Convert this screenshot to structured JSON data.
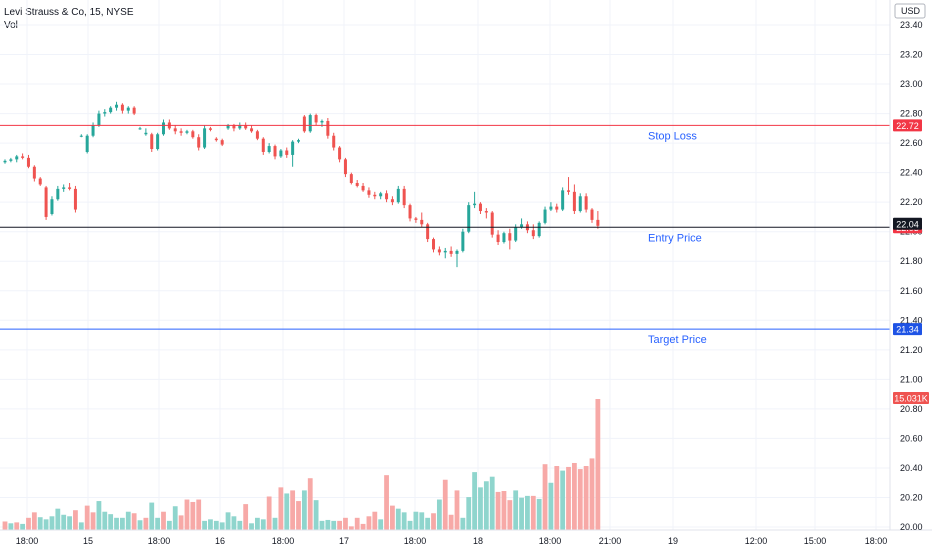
{
  "legend": {
    "symbol_line": "Levi Strauss & Co, 15, NYSE",
    "volume_label": "Vol"
  },
  "colors": {
    "up": "#26a69a",
    "down": "#ef5350",
    "up_volume": "#8fd5cd",
    "down_volume": "#f7a9a7",
    "stop_loss": "#f23645",
    "entry": "#131722",
    "target": "#2962ff",
    "note_text": "#2962ff",
    "grid": "#f0f3fa",
    "axis_text": "#131722"
  },
  "chart_data": {
    "type": "candlestick",
    "currency": "USD",
    "y_axis": {
      "min": 20.0,
      "max": 23.4,
      "ticks": [
        "23.40",
        "23.20",
        "23.00",
        "22.80",
        "22.60",
        "22.40",
        "22.20",
        "22.00",
        "21.80",
        "21.60",
        "21.40",
        "21.20",
        "21.00",
        "20.80",
        "20.60",
        "20.40",
        "20.20",
        "20.00"
      ]
    },
    "x_axis": {
      "ticks": [
        "18:00",
        "15",
        "18:00",
        "16",
        "18:00",
        "17",
        "18:00",
        "18",
        "18:00",
        "21:00",
        "19",
        "12:00",
        "15:00",
        "18:00"
      ]
    },
    "grid": true,
    "price_lines": [
      {
        "name": "stop_loss",
        "price": 22.72,
        "label": "22.72",
        "note": "Stop Loss"
      },
      {
        "name": "entry",
        "price": 22.03,
        "label": "22.03",
        "note": "Entry Price"
      },
      {
        "name": "target",
        "price": 21.34,
        "label": "21.34",
        "note": "Target Price"
      }
    ],
    "last_price": {
      "price": 22.04,
      "label": "22.04"
    },
    "last_volume": {
      "label": "15.031K"
    },
    "candles": [
      [
        22.47,
        22.49,
        22.46,
        22.48
      ],
      [
        22.48,
        22.5,
        22.47,
        22.49
      ],
      [
        22.49,
        22.52,
        22.47,
        22.51
      ],
      [
        22.51,
        22.53,
        22.49,
        22.5
      ],
      [
        22.5,
        22.52,
        22.43,
        22.44
      ],
      [
        22.44,
        22.45,
        22.34,
        22.36
      ],
      [
        22.36,
        22.37,
        22.31,
        22.32
      ],
      [
        22.3,
        22.31,
        22.08,
        22.1
      ],
      [
        22.12,
        22.24,
        22.11,
        22.22
      ],
      [
        22.22,
        22.31,
        22.21,
        22.29
      ],
      [
        22.29,
        22.32,
        22.27,
        22.3
      ],
      [
        22.3,
        22.33,
        22.28,
        22.29
      ],
      [
        22.29,
        22.31,
        22.13,
        22.15
      ],
      [
        22.65,
        22.66,
        22.64,
        22.65
      ],
      [
        22.54,
        22.66,
        22.53,
        22.65
      ],
      [
        22.65,
        22.74,
        22.64,
        22.72
      ],
      [
        22.72,
        22.82,
        22.71,
        22.8
      ],
      [
        22.8,
        22.83,
        22.78,
        22.81
      ],
      [
        22.81,
        22.85,
        22.8,
        22.84
      ],
      [
        22.84,
        22.88,
        22.82,
        22.86
      ],
      [
        22.86,
        22.87,
        22.8,
        22.82
      ],
      [
        22.82,
        22.85,
        22.8,
        22.84
      ],
      [
        22.84,
        22.85,
        22.79,
        22.8
      ],
      [
        22.7,
        22.71,
        22.69,
        22.7
      ],
      [
        22.66,
        22.7,
        22.65,
        22.67
      ],
      [
        22.66,
        22.67,
        22.54,
        22.56
      ],
      [
        22.56,
        22.67,
        22.55,
        22.66
      ],
      [
        22.66,
        22.76,
        22.65,
        22.74
      ],
      [
        22.74,
        22.76,
        22.69,
        22.7
      ],
      [
        22.7,
        22.72,
        22.66,
        22.68
      ],
      [
        22.68,
        22.7,
        22.65,
        22.67
      ],
      [
        22.67,
        22.69,
        22.66,
        22.68
      ],
      [
        22.68,
        22.69,
        22.63,
        22.64
      ],
      [
        22.64,
        22.66,
        22.55,
        22.57
      ],
      [
        22.57,
        22.72,
        22.56,
        22.7
      ],
      [
        22.7,
        22.71,
        22.68,
        22.69
      ],
      [
        22.63,
        22.64,
        22.61,
        22.62
      ],
      [
        22.62,
        22.63,
        22.58,
        22.59
      ],
      [
        22.7,
        22.73,
        22.69,
        22.72
      ],
      [
        22.72,
        22.73,
        22.68,
        22.7
      ],
      [
        22.7,
        22.74,
        22.69,
        22.72
      ],
      [
        22.72,
        22.74,
        22.69,
        22.7
      ],
      [
        22.7,
        22.72,
        22.67,
        22.68
      ],
      [
        22.68,
        22.69,
        22.62,
        22.63
      ],
      [
        22.63,
        22.64,
        22.52,
        22.54
      ],
      [
        22.54,
        22.6,
        22.53,
        22.58
      ],
      [
        22.58,
        22.59,
        22.49,
        22.51
      ],
      [
        22.51,
        22.56,
        22.5,
        22.55
      ],
      [
        22.55,
        22.57,
        22.5,
        22.52
      ],
      [
        22.52,
        22.62,
        22.44,
        22.61
      ],
      [
        22.61,
        22.63,
        22.6,
        22.62
      ],
      [
        22.78,
        22.79,
        22.67,
        22.68
      ],
      [
        22.68,
        22.8,
        22.67,
        22.79
      ],
      [
        22.79,
        22.8,
        22.72,
        22.74
      ],
      [
        22.74,
        22.76,
        22.71,
        22.75
      ],
      [
        22.75,
        22.77,
        22.63,
        22.65
      ],
      [
        22.65,
        22.67,
        22.55,
        22.57
      ],
      [
        22.57,
        22.58,
        22.47,
        22.49
      ],
      [
        22.49,
        22.5,
        22.37,
        22.39
      ],
      [
        22.39,
        22.4,
        22.32,
        22.33
      ],
      [
        22.33,
        22.35,
        22.3,
        22.31
      ],
      [
        22.31,
        22.33,
        22.27,
        22.28
      ],
      [
        22.28,
        22.3,
        22.23,
        22.25
      ],
      [
        22.25,
        22.27,
        22.22,
        22.24
      ],
      [
        22.24,
        22.27,
        22.22,
        22.26
      ],
      [
        22.26,
        22.28,
        22.2,
        22.22
      ],
      [
        22.22,
        22.24,
        22.18,
        22.2
      ],
      [
        22.2,
        22.31,
        22.19,
        22.29
      ],
      [
        22.29,
        22.31,
        22.16,
        22.18
      ],
      [
        22.18,
        22.19,
        22.07,
        22.09
      ],
      [
        22.09,
        22.1,
        22.06,
        22.08
      ],
      [
        22.08,
        22.13,
        22.03,
        22.05
      ],
      [
        22.05,
        22.06,
        21.93,
        21.95
      ],
      [
        21.95,
        21.96,
        21.86,
        21.88
      ],
      [
        21.88,
        21.9,
        21.84,
        21.86
      ],
      [
        21.86,
        21.89,
        21.82,
        21.87
      ],
      [
        21.87,
        21.9,
        21.83,
        21.85
      ],
      [
        21.85,
        21.88,
        21.76,
        21.87
      ],
      [
        21.87,
        22.02,
        21.86,
        22.0
      ],
      [
        22.0,
        22.2,
        21.99,
        22.18
      ],
      [
        22.18,
        22.27,
        22.16,
        22.19
      ],
      [
        22.19,
        22.2,
        22.12,
        22.14
      ],
      [
        22.14,
        22.16,
        22.09,
        22.13
      ],
      [
        22.13,
        22.14,
        21.96,
        21.98
      ],
      [
        21.98,
        22.01,
        21.91,
        21.93
      ],
      [
        21.93,
        22.0,
        21.92,
        21.99
      ],
      [
        21.99,
        22.02,
        21.88,
        21.94
      ],
      [
        21.94,
        22.05,
        21.93,
        22.03
      ],
      [
        22.03,
        22.09,
        22.02,
        22.05
      ],
      [
        22.05,
        22.07,
        21.99,
        22.01
      ],
      [
        22.01,
        22.05,
        21.95,
        21.97
      ],
      [
        21.97,
        22.07,
        21.96,
        22.06
      ],
      [
        22.06,
        22.17,
        22.05,
        22.15
      ],
      [
        22.15,
        22.2,
        22.14,
        22.17
      ],
      [
        22.17,
        22.19,
        22.13,
        22.15
      ],
      [
        22.15,
        22.3,
        22.14,
        22.28
      ],
      [
        22.28,
        22.37,
        22.25,
        22.27
      ],
      [
        22.27,
        22.32,
        22.12,
        22.14
      ],
      [
        22.14,
        22.26,
        22.13,
        22.24
      ],
      [
        22.24,
        22.26,
        22.13,
        22.15
      ],
      [
        22.15,
        22.16,
        22.06,
        22.08
      ],
      [
        22.08,
        22.14,
        22.02,
        22.04
      ]
    ],
    "volumes": [
      [
        28,
        0
      ],
      [
        22,
        1
      ],
      [
        25,
        0
      ],
      [
        20,
        1
      ],
      [
        40,
        0
      ],
      [
        58,
        0
      ],
      [
        42,
        1
      ],
      [
        35,
        1
      ],
      [
        45,
        1
      ],
      [
        70,
        1
      ],
      [
        50,
        1
      ],
      [
        45,
        1
      ],
      [
        65,
        0
      ],
      [
        25,
        1
      ],
      [
        80,
        0
      ],
      [
        58,
        0
      ],
      [
        95,
        1
      ],
      [
        60,
        1
      ],
      [
        52,
        1
      ],
      [
        40,
        1
      ],
      [
        40,
        1
      ],
      [
        60,
        1
      ],
      [
        55,
        0
      ],
      [
        32,
        1
      ],
      [
        40,
        0
      ],
      [
        90,
        1
      ],
      [
        40,
        1
      ],
      [
        60,
        0
      ],
      [
        30,
        1
      ],
      [
        78,
        1
      ],
      [
        48,
        0
      ],
      [
        100,
        0
      ],
      [
        92,
        0
      ],
      [
        100,
        0
      ],
      [
        30,
        1
      ],
      [
        35,
        1
      ],
      [
        30,
        1
      ],
      [
        25,
        1
      ],
      [
        58,
        1
      ],
      [
        45,
        1
      ],
      [
        30,
        1
      ],
      [
        85,
        0
      ],
      [
        22,
        1
      ],
      [
        40,
        1
      ],
      [
        35,
        1
      ],
      [
        110,
        0
      ],
      [
        40,
        1
      ],
      [
        140,
        0
      ],
      [
        120,
        1
      ],
      [
        130,
        0
      ],
      [
        95,
        0
      ],
      [
        130,
        1
      ],
      [
        170,
        0
      ],
      [
        98,
        1
      ],
      [
        30,
        1
      ],
      [
        33,
        1
      ],
      [
        30,
        1
      ],
      [
        30,
        0
      ],
      [
        40,
        0
      ],
      [
        12,
        0
      ],
      [
        40,
        0
      ],
      [
        20,
        0
      ],
      [
        45,
        0
      ],
      [
        60,
        0
      ],
      [
        35,
        1
      ],
      [
        180,
        0
      ],
      [
        80,
        0
      ],
      [
        70,
        1
      ],
      [
        58,
        1
      ],
      [
        30,
        1
      ],
      [
        60,
        1
      ],
      [
        58,
        1
      ],
      [
        40,
        1
      ],
      [
        55,
        0
      ],
      [
        100,
        1
      ],
      [
        165,
        0
      ],
      [
        50,
        0
      ],
      [
        130,
        0
      ],
      [
        40,
        1
      ],
      [
        108,
        1
      ],
      [
        190,
        1
      ],
      [
        140,
        1
      ],
      [
        160,
        1
      ],
      [
        175,
        1
      ],
      [
        125,
        0
      ],
      [
        128,
        0
      ],
      [
        98,
        0
      ],
      [
        130,
        1
      ],
      [
        106,
        1
      ],
      [
        112,
        1
      ],
      [
        112,
        0
      ],
      [
        102,
        1
      ],
      [
        216,
        0
      ],
      [
        155,
        1
      ],
      [
        210,
        0
      ],
      [
        195,
        1
      ],
      [
        207,
        0
      ],
      [
        220,
        0
      ],
      [
        200,
        0
      ],
      [
        210,
        0
      ],
      [
        235,
        0
      ],
      [
        430,
        0
      ]
    ]
  }
}
